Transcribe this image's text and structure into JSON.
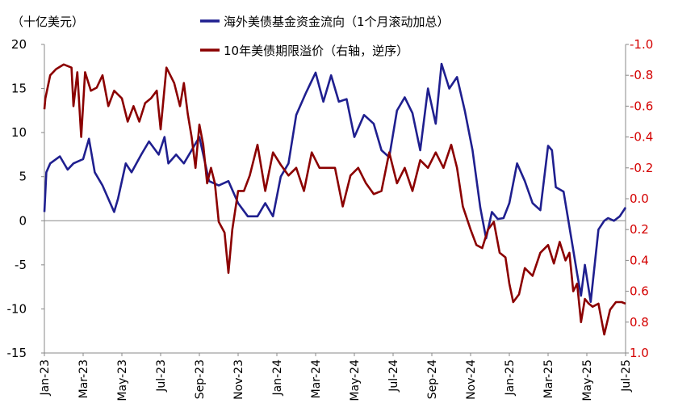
{
  "chart_data": {
    "type": "line",
    "unit_label": "（十亿美元）",
    "left_axis": {
      "ylim": [
        -15,
        20
      ],
      "ticks": [
        "20",
        "15",
        "10",
        "5",
        "0",
        "-5",
        "-10",
        "-15"
      ],
      "tick_values": [
        20,
        15,
        10,
        5,
        0,
        -5,
        -10,
        -15
      ]
    },
    "right_axis": {
      "ylim": [
        -1.0,
        1.0
      ],
      "reversed": true,
      "ticks": [
        "-1.0",
        "-0.8",
        "-0.6",
        "-0.4",
        "-0.2",
        "0.0",
        "0.2",
        "0.4",
        "0.6",
        "0.8",
        "1.0"
      ],
      "tick_values": [
        -1.0,
        -0.8,
        -0.6,
        -0.4,
        -0.2,
        0.0,
        0.2,
        0.4,
        0.6,
        0.8,
        1.0
      ],
      "color": "#d40000"
    },
    "x_range": [
      0,
      30
    ],
    "x_ticks": [
      "Jan-23",
      "Mar-23",
      "May-23",
      "Jul-23",
      "Sep-23",
      "Nov-23",
      "Jan-24",
      "Mar-24",
      "May-24",
      "Jul-24",
      "Sep-24",
      "Nov-24",
      "Jan-25",
      "Mar-25",
      "May-25",
      "Jul-25"
    ],
    "x_tick_values": [
      0,
      2,
      4,
      6,
      8,
      10,
      12,
      14,
      16,
      18,
      20,
      22,
      24,
      26,
      28,
      30
    ],
    "series": [
      {
        "name": "海外美债基金资金流向（1个月滚动加总）",
        "axis": "left",
        "color": "#1f1f8f",
        "x": [
          0,
          0.1,
          0.3,
          0.8,
          1.2,
          1.5,
          2.0,
          2.3,
          2.6,
          3.0,
          3.4,
          3.6,
          3.8,
          4.2,
          4.5,
          5.0,
          5.4,
          5.9,
          6.2,
          6.4,
          6.8,
          7.2,
          7.6,
          8.0,
          8.5,
          9.0,
          9.5,
          10.0,
          10.5,
          11.0,
          11.4,
          11.8,
          12.2,
          12.6,
          13.0,
          13.5,
          14.0,
          14.4,
          14.8,
          15.2,
          15.6,
          16.0,
          16.5,
          17.0,
          17.4,
          17.8,
          18.2,
          18.6,
          19.0,
          19.4,
          19.8,
          20.2,
          20.5,
          20.9,
          21.3,
          21.7,
          22.1,
          22.5,
          22.8,
          23.1,
          23.4,
          23.7,
          24.0,
          24.4,
          24.8,
          25.2,
          25.6,
          26.0,
          26.2,
          26.4,
          26.8,
          27.2,
          27.5,
          27.7,
          27.9,
          28.2,
          28.6,
          28.9,
          29.1,
          29.4,
          29.7,
          30.0
        ],
        "values": [
          1.0,
          5.5,
          6.5,
          7.3,
          5.8,
          6.5,
          7.0,
          9.3,
          5.5,
          4.0,
          2.0,
          1.0,
          2.5,
          6.5,
          5.5,
          7.5,
          9.0,
          7.5,
          9.5,
          6.5,
          7.5,
          6.5,
          8.0,
          9.5,
          4.5,
          4.0,
          4.5,
          2.0,
          0.5,
          0.5,
          2.0,
          0.5,
          5.0,
          6.5,
          12.0,
          14.5,
          16.8,
          13.5,
          16.5,
          13.5,
          13.8,
          9.5,
          12.0,
          11.0,
          8.0,
          7.2,
          12.5,
          14.0,
          12.2,
          8.0,
          15.0,
          11.0,
          17.8,
          15.0,
          16.3,
          12.5,
          8.0,
          1.5,
          -2.0,
          1.0,
          0.2,
          0.3,
          2.0,
          6.5,
          4.5,
          2.0,
          1.2,
          8.5,
          8.0,
          3.8,
          3.3,
          -2.0,
          -6.0,
          -8.5,
          -5.0,
          -9.2,
          -1.0,
          0.0,
          0.3,
          0.0,
          0.5,
          1.5
        ]
      },
      {
        "name": "10年美债期限溢价（右轴，逆序）",
        "axis": "right",
        "color": "#8b0000",
        "x": [
          0,
          0.05,
          0.3,
          0.6,
          1.0,
          1.4,
          1.5,
          1.7,
          1.9,
          2.1,
          2.4,
          2.7,
          3.0,
          3.3,
          3.6,
          4.0,
          4.3,
          4.6,
          4.9,
          5.2,
          5.5,
          5.8,
          6.0,
          6.3,
          6.5,
          6.7,
          7.0,
          7.2,
          7.4,
          7.6,
          7.8,
          8.0,
          8.2,
          8.4,
          8.6,
          8.8,
          9.0,
          9.3,
          9.5,
          9.7,
          10.0,
          10.3,
          10.6,
          11.0,
          11.4,
          11.8,
          12.2,
          12.6,
          13.0,
          13.4,
          13.8,
          14.2,
          14.6,
          15.0,
          15.4,
          15.8,
          16.2,
          16.6,
          17.0,
          17.4,
          17.8,
          18.2,
          18.6,
          19.0,
          19.4,
          19.8,
          20.2,
          20.6,
          21.0,
          21.3,
          21.6,
          22.0,
          22.3,
          22.6,
          22.9,
          23.2,
          23.5,
          23.8,
          24.0,
          24.2,
          24.5,
          24.8,
          25.2,
          25.6,
          26.0,
          26.3,
          26.6,
          26.9,
          27.1,
          27.3,
          27.5,
          27.7,
          27.9,
          28.1,
          28.3,
          28.6,
          28.9,
          29.2,
          29.5,
          29.8,
          30.0
        ],
        "values": [
          -0.58,
          -0.65,
          -0.8,
          -0.84,
          -0.87,
          -0.85,
          -0.6,
          -0.82,
          -0.4,
          -0.82,
          -0.7,
          -0.72,
          -0.8,
          -0.6,
          -0.7,
          -0.65,
          -0.5,
          -0.6,
          -0.5,
          -0.62,
          -0.65,
          -0.7,
          -0.45,
          -0.85,
          -0.8,
          -0.75,
          -0.6,
          -0.75,
          -0.55,
          -0.4,
          -0.2,
          -0.48,
          -0.35,
          -0.1,
          -0.2,
          -0.1,
          0.15,
          0.22,
          0.48,
          0.2,
          -0.05,
          -0.05,
          -0.15,
          -0.35,
          -0.05,
          -0.3,
          -0.22,
          -0.15,
          -0.2,
          -0.05,
          -0.3,
          -0.2,
          -0.2,
          -0.2,
          0.05,
          -0.15,
          -0.2,
          -0.1,
          -0.03,
          -0.05,
          -0.3,
          -0.1,
          -0.2,
          -0.05,
          -0.25,
          -0.2,
          -0.3,
          -0.2,
          -0.35,
          -0.2,
          0.05,
          0.2,
          0.3,
          0.32,
          0.2,
          0.15,
          0.35,
          0.38,
          0.55,
          0.67,
          0.62,
          0.45,
          0.5,
          0.35,
          0.3,
          0.42,
          0.28,
          0.4,
          0.35,
          0.6,
          0.55,
          0.8,
          0.65,
          0.68,
          0.7,
          0.68,
          0.88,
          0.72,
          0.67,
          0.67,
          0.68
        ]
      }
    ]
  }
}
